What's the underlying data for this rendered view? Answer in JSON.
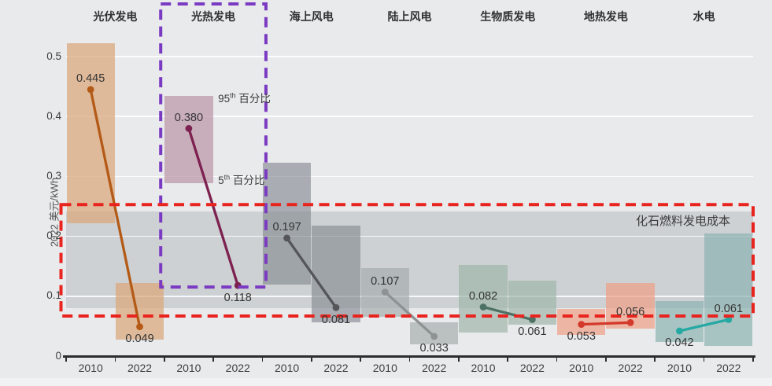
{
  "chart_data": {
    "type": "range-slope",
    "title": "",
    "ylabel": "2022 美元/kWh",
    "ylim": [
      0,
      0.55
    ],
    "yticks": [
      {
        "v": 0,
        "label": "0"
      },
      {
        "v": 0.1,
        "label": "0.1"
      },
      {
        "v": 0.2,
        "label": "0.2"
      },
      {
        "v": 0.3,
        "label": "0.3"
      },
      {
        "v": 0.4,
        "label": "0.4"
      },
      {
        "v": 0.5,
        "label": "0.5"
      }
    ],
    "grid": "on",
    "x_years": [
      "2010",
      "2022"
    ],
    "annotations": {
      "p95": {
        "num": "95",
        "sup": "th",
        "text": " 百分比"
      },
      "p5": {
        "num": "5",
        "sup": "th",
        "text": " 百分比"
      }
    },
    "fossil": {
      "label": "化石燃料发电成本",
      "band_range": [
        0.08,
        0.241
      ],
      "box_range": [
        0.067,
        0.253
      ],
      "band_color": "#cdd1d3",
      "box_color": "#e9231e"
    },
    "highlight_box": {
      "series": "光热发电",
      "color": "#7b3ac2"
    },
    "series": [
      {
        "name": "光伏发电",
        "line_color": "#b45a17",
        "band_color": "rgba(219,168,122,0.72)",
        "points": [
          {
            "year": "2010",
            "value": 0.445,
            "label": "0.445",
            "band": [
              0.222,
              0.522
            ],
            "label_pos": "above"
          },
          {
            "year": "2022",
            "value": 0.049,
            "label": "0.049",
            "band": [
              0.028,
              0.122
            ],
            "label_pos": "below"
          }
        ]
      },
      {
        "name": "光热发电",
        "line_color": "#7d2150",
        "band_color": "rgba(186,148,165,0.70)",
        "points": [
          {
            "year": "2010",
            "value": 0.38,
            "label": "0.380",
            "band": [
              0.289,
              0.434
            ],
            "label_pos": "above"
          },
          {
            "year": "2022",
            "value": 0.118,
            "label": "0.118",
            "band": null,
            "label_pos": "below"
          }
        ]
      },
      {
        "name": "海上风电",
        "line_color": "#54565a",
        "band_color": "rgba(130,136,144,0.62)",
        "points": [
          {
            "year": "2010",
            "value": 0.197,
            "label": "0.197",
            "band": [
              0.119,
              0.323
            ],
            "label_pos": "above"
          },
          {
            "year": "2022",
            "value": 0.081,
            "label": "0.081",
            "band": [
              0.056,
              0.218
            ],
            "label_pos": "below"
          }
        ]
      },
      {
        "name": "陆上风电",
        "line_color": "#8e9293",
        "band_color": "rgba(165,172,173,0.68)",
        "points": [
          {
            "year": "2010",
            "value": 0.107,
            "label": "0.107",
            "band": [
              0.066,
              0.147
            ],
            "label_pos": "above"
          },
          {
            "year": "2022",
            "value": 0.033,
            "label": "0.033",
            "band": [
              0.02,
              0.056
            ],
            "label_pos": "below"
          }
        ]
      },
      {
        "name": "生物质发电",
        "line_color": "#4e7165",
        "band_color": "rgba(158,182,170,0.68)",
        "points": [
          {
            "year": "2010",
            "value": 0.082,
            "label": "0.082",
            "band": [
              0.039,
              0.152
            ],
            "label_pos": "above"
          },
          {
            "year": "2022",
            "value": 0.061,
            "label": "0.061",
            "band": [
              0.052,
              0.126
            ],
            "label_pos": "below"
          }
        ]
      },
      {
        "name": "地热发电",
        "line_color": "#d43a2c",
        "band_color": "rgba(240,158,132,0.70)",
        "points": [
          {
            "year": "2010",
            "value": 0.053,
            "label": "0.053",
            "band": [
              0.035,
              0.079
            ],
            "label_pos": "below"
          },
          {
            "year": "2022",
            "value": 0.056,
            "label": "0.056",
            "band": [
              0.046,
              0.122
            ],
            "label_pos": "above"
          }
        ]
      },
      {
        "name": "水电",
        "line_color": "#27a9a3",
        "band_color": "rgba(140,178,176,0.70)",
        "points": [
          {
            "year": "2010",
            "value": 0.042,
            "label": "0.042",
            "band": [
              0.024,
              0.092
            ],
            "label_pos": "below"
          },
          {
            "year": "2022",
            "value": 0.061,
            "label": "0.061",
            "band": [
              0.017,
              0.205
            ],
            "label_pos": "above"
          }
        ]
      }
    ]
  }
}
